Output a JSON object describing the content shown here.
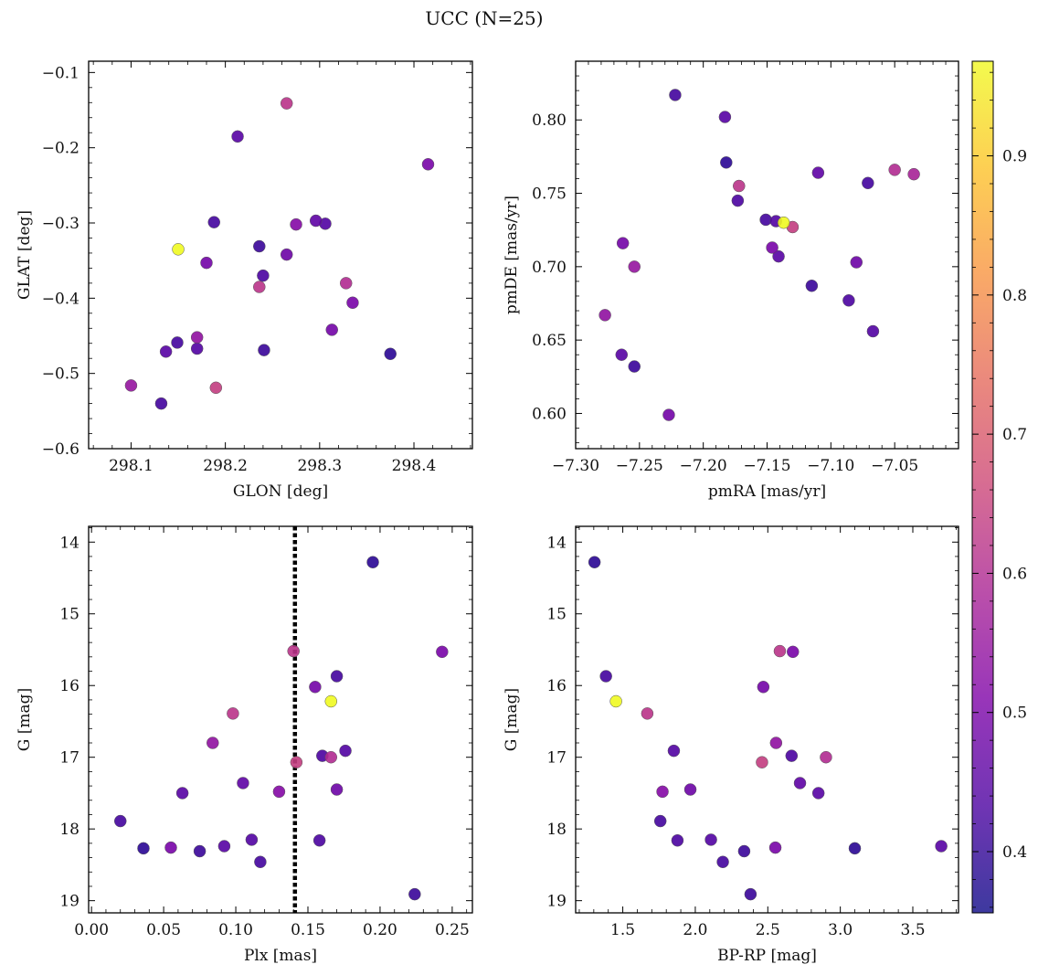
{
  "figure": {
    "title": "UCC (N=25)"
  },
  "colors": {
    "cmap": "plasma",
    "edge": "#555555",
    "vline": "#000000"
  },
  "chart_data": [
    {
      "id": "radec",
      "type": "scatter",
      "xlabel": "GLON [deg]",
      "ylabel": "GLAT [deg]",
      "xlim": [
        298.055,
        298.462
      ],
      "ylim": [
        -0.6,
        -0.085
      ],
      "y_inverted": false,
      "xticks": [
        298.1,
        298.2,
        298.3,
        298.4
      ],
      "xtick_labels": [
        "298.1",
        "298.2",
        "298.3",
        "298.4"
      ],
      "yticks": [
        -0.6,
        -0.5,
        -0.4,
        -0.3,
        -0.2,
        -0.1
      ],
      "ytick_labels": [
        "−0.6",
        "−0.5",
        "−0.4",
        "−0.3",
        "−0.2",
        "−0.1"
      ],
      "points": [
        {
          "x": 298.265,
          "y": -0.141,
          "c": 0.62
        },
        {
          "x": 298.213,
          "y": -0.185,
          "c": 0.45
        },
        {
          "x": 298.415,
          "y": -0.222,
          "c": 0.5
        },
        {
          "x": 298.188,
          "y": -0.299,
          "c": 0.42
        },
        {
          "x": 298.296,
          "y": -0.297,
          "c": 0.46
        },
        {
          "x": 298.306,
          "y": -0.301,
          "c": 0.44
        },
        {
          "x": 298.275,
          "y": -0.302,
          "c": 0.52
        },
        {
          "x": 298.15,
          "y": -0.335,
          "c": 0.97
        },
        {
          "x": 298.236,
          "y": -0.331,
          "c": 0.41
        },
        {
          "x": 298.265,
          "y": -0.342,
          "c": 0.48
        },
        {
          "x": 298.18,
          "y": -0.353,
          "c": 0.49
        },
        {
          "x": 298.24,
          "y": -0.37,
          "c": 0.43
        },
        {
          "x": 298.236,
          "y": -0.385,
          "c": 0.62
        },
        {
          "x": 298.328,
          "y": -0.38,
          "c": 0.6
        },
        {
          "x": 298.335,
          "y": -0.406,
          "c": 0.5
        },
        {
          "x": 298.313,
          "y": -0.442,
          "c": 0.49
        },
        {
          "x": 298.17,
          "y": -0.452,
          "c": 0.54
        },
        {
          "x": 298.149,
          "y": -0.459,
          "c": 0.42
        },
        {
          "x": 298.17,
          "y": -0.467,
          "c": 0.44
        },
        {
          "x": 298.137,
          "y": -0.471,
          "c": 0.45
        },
        {
          "x": 298.241,
          "y": -0.469,
          "c": 0.41
        },
        {
          "x": 298.375,
          "y": -0.474,
          "c": 0.39
        },
        {
          "x": 298.1,
          "y": -0.516,
          "c": 0.55
        },
        {
          "x": 298.19,
          "y": -0.519,
          "c": 0.64
        },
        {
          "x": 298.132,
          "y": -0.54,
          "c": 0.42
        }
      ]
    },
    {
      "id": "pm",
      "type": "scatter",
      "xlabel": "pmRA [mas/yr]",
      "ylabel": "pmDE [mas/yr]",
      "xlim": [
        -7.3,
        -7.0
      ],
      "ylim": [
        0.576,
        0.84
      ],
      "y_inverted": false,
      "xticks": [
        -7.3,
        -7.25,
        -7.2,
        -7.15,
        -7.1,
        -7.05
      ],
      "xtick_labels": [
        "−7.30",
        "−7.25",
        "−7.20",
        "−7.15",
        "−7.10",
        "−7.05"
      ],
      "yticks": [
        0.6,
        0.65,
        0.7,
        0.75,
        0.8
      ],
      "ytick_labels": [
        "0.60",
        "0.65",
        "0.70",
        "0.75",
        "0.80"
      ],
      "points": [
        {
          "x": -7.222,
          "y": 0.817,
          "c": 0.42
        },
        {
          "x": -7.183,
          "y": 0.802,
          "c": 0.45
        },
        {
          "x": -7.182,
          "y": 0.771,
          "c": 0.39
        },
        {
          "x": -7.05,
          "y": 0.766,
          "c": 0.6
        },
        {
          "x": -7.035,
          "y": 0.763,
          "c": 0.58
        },
        {
          "x": -7.11,
          "y": 0.764,
          "c": 0.46
        },
        {
          "x": -7.071,
          "y": 0.757,
          "c": 0.42
        },
        {
          "x": -7.172,
          "y": 0.755,
          "c": 0.62
        },
        {
          "x": -7.173,
          "y": 0.745,
          "c": 0.43
        },
        {
          "x": -7.151,
          "y": 0.732,
          "c": 0.42
        },
        {
          "x": -7.143,
          "y": 0.731,
          "c": 0.44
        },
        {
          "x": -7.137,
          "y": 0.73,
          "c": 0.97
        },
        {
          "x": -7.13,
          "y": 0.727,
          "c": 0.64
        },
        {
          "x": -7.263,
          "y": 0.716,
          "c": 0.49
        },
        {
          "x": -7.146,
          "y": 0.713,
          "c": 0.5
        },
        {
          "x": -7.141,
          "y": 0.707,
          "c": 0.45
        },
        {
          "x": -7.08,
          "y": 0.703,
          "c": 0.48
        },
        {
          "x": -7.254,
          "y": 0.7,
          "c": 0.55
        },
        {
          "x": -7.115,
          "y": 0.687,
          "c": 0.41
        },
        {
          "x": -7.086,
          "y": 0.677,
          "c": 0.43
        },
        {
          "x": -7.277,
          "y": 0.667,
          "c": 0.54
        },
        {
          "x": -7.067,
          "y": 0.656,
          "c": 0.44
        },
        {
          "x": -7.264,
          "y": 0.64,
          "c": 0.45
        },
        {
          "x": -7.254,
          "y": 0.632,
          "c": 0.41
        },
        {
          "x": -7.227,
          "y": 0.599,
          "c": 0.49
        }
      ]
    },
    {
      "id": "plx",
      "type": "scatter",
      "xlabel": "Plx [mas]",
      "ylabel": "G [mag]",
      "xlim": [
        -0.002,
        0.264
      ],
      "ylim": [
        19.17,
        13.78
      ],
      "y_inverted": true,
      "vline": 0.141,
      "xticks": [
        0.0,
        0.05,
        0.1,
        0.15,
        0.2,
        0.25
      ],
      "xtick_labels": [
        "0.00",
        "0.05",
        "0.10",
        "0.15",
        "0.20",
        "0.25"
      ],
      "yticks": [
        14,
        15,
        16,
        17,
        18,
        19
      ],
      "ytick_labels": [
        "14",
        "15",
        "16",
        "17",
        "18",
        "19"
      ],
      "points": [
        {
          "x": 0.195,
          "y": 14.28,
          "c": 0.39
        },
        {
          "x": 0.14,
          "y": 15.52,
          "c": 0.62
        },
        {
          "x": 0.243,
          "y": 15.53,
          "c": 0.5
        },
        {
          "x": 0.17,
          "y": 15.87,
          "c": 0.42
        },
        {
          "x": 0.155,
          "y": 16.02,
          "c": 0.49
        },
        {
          "x": 0.166,
          "y": 16.22,
          "c": 0.97
        },
        {
          "x": 0.098,
          "y": 16.39,
          "c": 0.62
        },
        {
          "x": 0.084,
          "y": 16.8,
          "c": 0.54
        },
        {
          "x": 0.176,
          "y": 16.91,
          "c": 0.44
        },
        {
          "x": 0.16,
          "y": 16.98,
          "c": 0.43
        },
        {
          "x": 0.166,
          "y": 17.0,
          "c": 0.6
        },
        {
          "x": 0.142,
          "y": 17.07,
          "c": 0.64
        },
        {
          "x": 0.105,
          "y": 17.36,
          "c": 0.46
        },
        {
          "x": 0.17,
          "y": 17.45,
          "c": 0.48
        },
        {
          "x": 0.13,
          "y": 17.48,
          "c": 0.52
        },
        {
          "x": 0.063,
          "y": 17.5,
          "c": 0.45
        },
        {
          "x": 0.02,
          "y": 17.89,
          "c": 0.42
        },
        {
          "x": 0.111,
          "y": 18.15,
          "c": 0.44
        },
        {
          "x": 0.158,
          "y": 18.16,
          "c": 0.43
        },
        {
          "x": 0.092,
          "y": 18.24,
          "c": 0.45
        },
        {
          "x": 0.055,
          "y": 18.26,
          "c": 0.5
        },
        {
          "x": 0.036,
          "y": 18.27,
          "c": 0.39
        },
        {
          "x": 0.075,
          "y": 18.31,
          "c": 0.41
        },
        {
          "x": 0.117,
          "y": 18.46,
          "c": 0.42
        },
        {
          "x": 0.224,
          "y": 18.91,
          "c": 0.41
        }
      ]
    },
    {
      "id": "cmd",
      "type": "scatter",
      "xlabel": "BP-RP [mag]",
      "ylabel": "G [mag]",
      "xlim": [
        1.175,
        3.815
      ],
      "ylim": [
        19.17,
        13.78
      ],
      "y_inverted": true,
      "xticks": [
        1.5,
        2.0,
        2.5,
        3.0,
        3.5
      ],
      "xtick_labels": [
        "1.5",
        "2.0",
        "2.5",
        "3.0",
        "3.5"
      ],
      "yticks": [
        14,
        15,
        16,
        17,
        18,
        19
      ],
      "ytick_labels": [
        "14",
        "15",
        "16",
        "17",
        "18",
        "19"
      ],
      "points": [
        {
          "x": 1.305,
          "y": 14.28,
          "c": 0.39
        },
        {
          "x": 2.583,
          "y": 15.52,
          "c": 0.62
        },
        {
          "x": 2.673,
          "y": 15.53,
          "c": 0.5
        },
        {
          "x": 1.384,
          "y": 15.87,
          "c": 0.42
        },
        {
          "x": 2.469,
          "y": 16.02,
          "c": 0.49
        },
        {
          "x": 1.453,
          "y": 16.22,
          "c": 0.97
        },
        {
          "x": 1.669,
          "y": 16.39,
          "c": 0.62
        },
        {
          "x": 2.557,
          "y": 16.8,
          "c": 0.54
        },
        {
          "x": 1.852,
          "y": 16.91,
          "c": 0.44
        },
        {
          "x": 2.664,
          "y": 16.98,
          "c": 0.43
        },
        {
          "x": 2.901,
          "y": 17.0,
          "c": 0.6
        },
        {
          "x": 2.46,
          "y": 17.07,
          "c": 0.64
        },
        {
          "x": 2.722,
          "y": 17.36,
          "c": 0.46
        },
        {
          "x": 1.966,
          "y": 17.45,
          "c": 0.48
        },
        {
          "x": 1.774,
          "y": 17.48,
          "c": 0.52
        },
        {
          "x": 2.849,
          "y": 17.5,
          "c": 0.45
        },
        {
          "x": 1.759,
          "y": 17.89,
          "c": 0.42
        },
        {
          "x": 2.108,
          "y": 18.15,
          "c": 0.44
        },
        {
          "x": 1.877,
          "y": 18.16,
          "c": 0.43
        },
        {
          "x": 3.696,
          "y": 18.24,
          "c": 0.45
        },
        {
          "x": 2.552,
          "y": 18.26,
          "c": 0.5
        },
        {
          "x": 3.1,
          "y": 18.27,
          "c": 0.39
        },
        {
          "x": 2.337,
          "y": 18.31,
          "c": 0.41
        },
        {
          "x": 2.19,
          "y": 18.46,
          "c": 0.42
        },
        {
          "x": 2.381,
          "y": 18.91,
          "c": 0.41
        }
      ]
    }
  ],
  "colorbar": {
    "range": [
      0.356,
      0.968
    ],
    "ticks": [
      0.4,
      0.5,
      0.6,
      0.7,
      0.8,
      0.9
    ],
    "tick_labels": [
      "0.4",
      "0.5",
      "0.6",
      "0.7",
      "0.8",
      "0.9"
    ]
  }
}
